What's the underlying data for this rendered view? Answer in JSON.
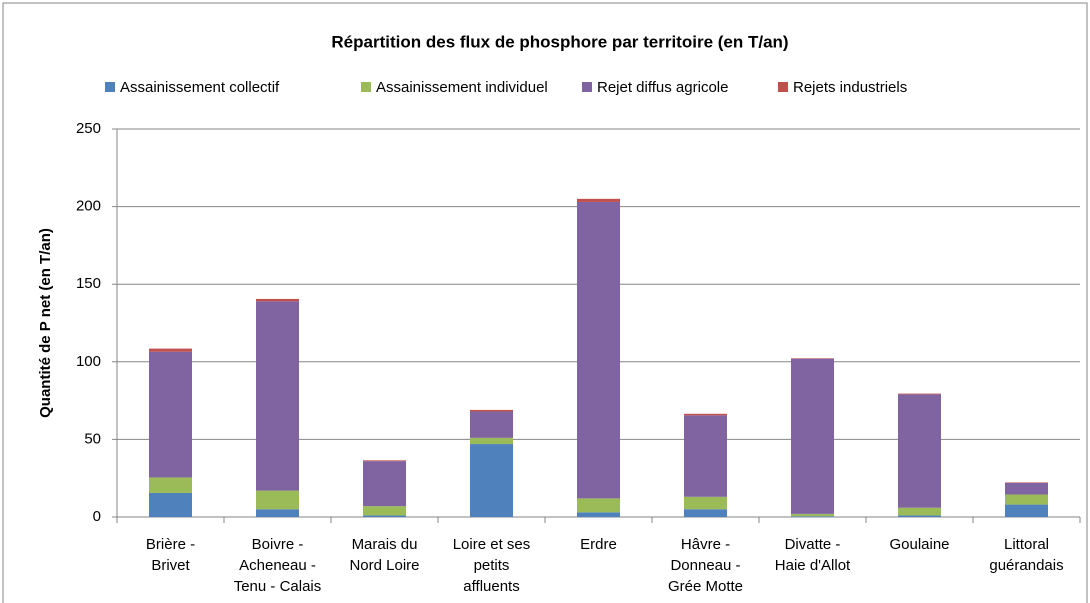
{
  "chart_data": {
    "type": "stacked_bar",
    "title": "Répartition des flux de phosphore par territoire (en T/an)",
    "y_label": "Quantité de P net (en T/an)",
    "categories": [
      "Brière -\nBrivet",
      "Boivre -\nAcheneau -\nTenu - Calais",
      "Marais du\nNord Loire",
      "Loire et ses\npetits\naffluents",
      "Erdre",
      "Hâvre -\nDonneau -\nGrée Motte",
      "Divatte -\nHaie d'Allot",
      "Goulaine",
      "Littoral\nguérandais"
    ],
    "series": [
      {
        "name": "Assainissement collectif",
        "color": "#4f81bd",
        "values": [
          15.5,
          5,
          1,
          47,
          3,
          5,
          0.5,
          1,
          8
        ]
      },
      {
        "name": "Assainissement individuel",
        "color": "#9bbb59",
        "values": [
          10,
          12,
          6,
          4,
          9,
          8,
          1.5,
          5,
          6.5
        ]
      },
      {
        "name": "Rejet diffus agricole",
        "color": "#8064a2",
        "values": [
          81,
          122,
          29,
          17,
          191,
          52.5,
          100,
          73,
          7.5
        ]
      },
      {
        "name": "Rejets industriels",
        "color": "#c0504d",
        "values": [
          2,
          1.5,
          0.5,
          1,
          2,
          1,
          0.3,
          0.5,
          0.3
        ]
      }
    ],
    "ylim": [
      0,
      250
    ],
    "yticks": [
      0,
      50,
      100,
      150,
      200,
      250
    ],
    "grid": true,
    "legend": "top"
  }
}
